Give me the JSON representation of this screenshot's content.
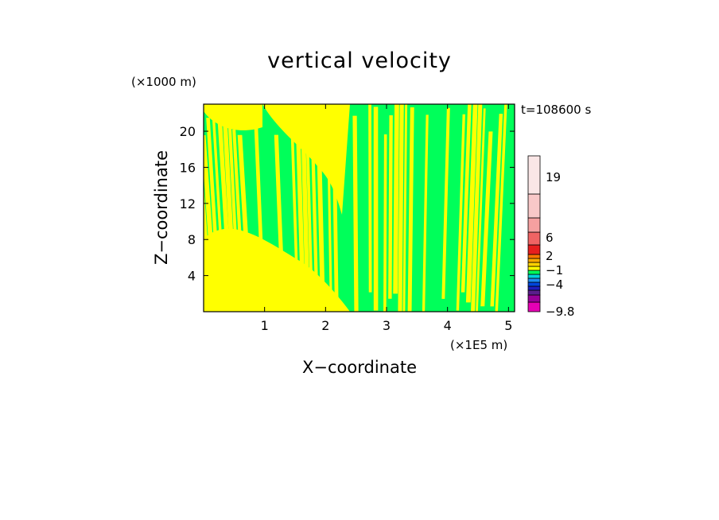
{
  "chart_data": {
    "type": "heatmap",
    "title": "vertical velocity",
    "xlabel": "X−coordinate",
    "ylabel": "Z−coordinate",
    "x_unit": "(×1E5 m)",
    "y_unit": "(×1000 m)",
    "time_label": "t=108600 s",
    "xlim": [
      0,
      5.1
    ],
    "ylim": [
      0,
      23
    ],
    "x_ticks": [
      1,
      2,
      3,
      4,
      5
    ],
    "y_ticks": [
      4,
      8,
      12,
      16,
      20
    ],
    "colorbar": {
      "levels": [
        {
          "color": "#e600b4"
        },
        {
          "color": "#9a009a"
        },
        {
          "color": "#5a1e8c"
        },
        {
          "color": "#1e1ebe"
        },
        {
          "color": "#0046dc"
        },
        {
          "color": "#1e8cf0"
        },
        {
          "color": "#00d2dc"
        },
        {
          "color": "#00ff5a"
        },
        {
          "color": "#ffff00"
        },
        {
          "color": "#ffd200"
        },
        {
          "color": "#ffaa00"
        },
        {
          "color": "#ff7800"
        },
        {
          "color": "#e61e1e"
        },
        {
          "color": "#f06464"
        },
        {
          "color": "#f5a0a0"
        },
        {
          "color": "#f8c8c8"
        },
        {
          "color": "#fae6e6"
        }
      ],
      "labels": [
        "19",
        "6",
        "2",
        "−1",
        "−4",
        "−9.8"
      ]
    },
    "field": {
      "dominant_colors": [
        "#ffff00",
        "#00ff5a"
      ],
      "description_pattern": "alternating updraft/downdraft bands"
    }
  }
}
